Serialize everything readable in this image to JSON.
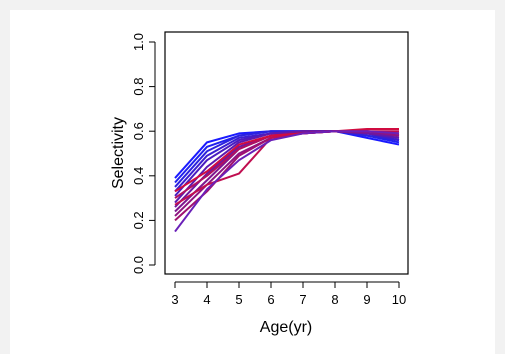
{
  "chart_data": {
    "type": "line",
    "xlabel": "Age(yr)",
    "ylabel": "Selectivity",
    "xlim": [
      3,
      10
    ],
    "ylim": [
      0.0,
      1.0
    ],
    "x_ticks": [
      3,
      4,
      5,
      6,
      7,
      8,
      9,
      10
    ],
    "y_ticks": [
      "0.0",
      "0.2",
      "0.4",
      "0.6",
      "0.8",
      "1.0"
    ],
    "grid": false,
    "legend": "none",
    "x": [
      3,
      4,
      5,
      6,
      7,
      8,
      9,
      10
    ],
    "series": [
      {
        "color": "#1a1aff",
        "values": [
          0.39,
          0.55,
          0.59,
          0.6,
          0.6,
          0.6,
          0.57,
          0.54
        ]
      },
      {
        "color": "#2020ee",
        "values": [
          0.37,
          0.53,
          0.58,
          0.6,
          0.6,
          0.6,
          0.58,
          0.55
        ]
      },
      {
        "color": "#2b22dd",
        "values": [
          0.35,
          0.51,
          0.58,
          0.6,
          0.6,
          0.6,
          0.58,
          0.56
        ]
      },
      {
        "color": "#3a1fd0",
        "values": [
          0.33,
          0.49,
          0.57,
          0.59,
          0.6,
          0.6,
          0.59,
          0.56
        ]
      },
      {
        "color": "#4a1cc0",
        "values": [
          0.31,
          0.47,
          0.56,
          0.59,
          0.6,
          0.6,
          0.59,
          0.57
        ]
      },
      {
        "color": "#5b1ab0",
        "values": [
          0.28,
          0.44,
          0.55,
          0.59,
          0.6,
          0.6,
          0.59,
          0.57
        ]
      },
      {
        "color": "#6c18a0",
        "values": [
          0.26,
          0.41,
          0.53,
          0.58,
          0.6,
          0.6,
          0.59,
          0.58
        ]
      },
      {
        "color": "#7d1690",
        "values": [
          0.24,
          0.38,
          0.52,
          0.58,
          0.59,
          0.6,
          0.6,
          0.58
        ]
      },
      {
        "color": "#8e1480",
        "values": [
          0.22,
          0.36,
          0.5,
          0.57,
          0.59,
          0.6,
          0.6,
          0.58
        ]
      },
      {
        "color": "#9f1270",
        "values": [
          0.2,
          0.33,
          0.49,
          0.57,
          0.59,
          0.6,
          0.6,
          0.59
        ]
      },
      {
        "color": "#b01060",
        "values": [
          0.3,
          0.4,
          0.52,
          0.58,
          0.59,
          0.6,
          0.6,
          0.59
        ]
      },
      {
        "color": "#c00e50",
        "values": [
          0.27,
          0.36,
          0.41,
          0.57,
          0.59,
          0.6,
          0.6,
          0.6
        ]
      },
      {
        "color": "#d00c40",
        "values": [
          0.33,
          0.42,
          0.54,
          0.58,
          0.59,
          0.6,
          0.61,
          0.61
        ]
      },
      {
        "color": "#6a20b8",
        "values": [
          0.15,
          0.34,
          0.47,
          0.56,
          0.59,
          0.6,
          0.6,
          0.59
        ]
      }
    ]
  }
}
